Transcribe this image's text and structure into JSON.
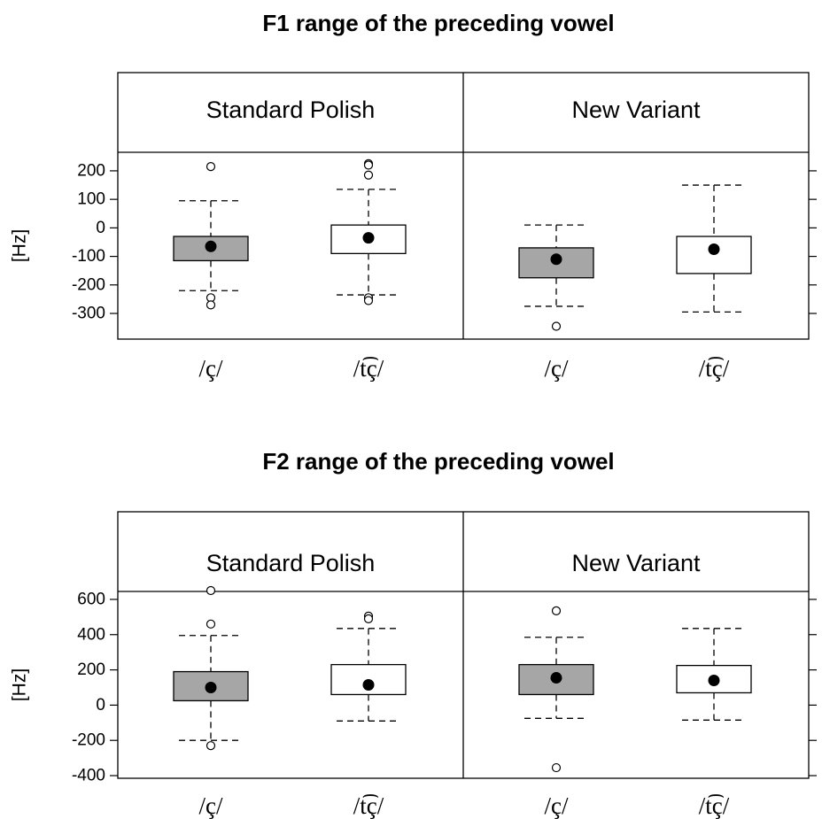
{
  "chart_data": [
    {
      "type": "box",
      "title": "F1 range of the preceding vowel",
      "ylabel": "[Hz]",
      "ylim": [
        -390,
        265
      ],
      "yticks": [
        -300,
        -200,
        -100,
        0,
        100,
        200
      ],
      "ytick_labels": [
        "-300",
        "-200",
        "-100",
        "0",
        "100",
        "200"
      ],
      "panels": [
        {
          "strip_label": "Standard Polish",
          "groups": [
            {
              "category": "/ç/",
              "fill": "#a6a6a6",
              "q1": -115,
              "median": -65,
              "q3": -30,
              "whisker_low": -220,
              "whisker_high": 95,
              "outliers": [
                215,
                -245,
                -270
              ]
            },
            {
              "category": "/t͡ç/",
              "fill": "#ffffff",
              "q1": -90,
              "median": -35,
              "q3": 10,
              "whisker_low": -235,
              "whisker_high": 135,
              "outliers": [
                225,
                220,
                185,
                -245,
                -255
              ]
            }
          ]
        },
        {
          "strip_label": "New Variant",
          "groups": [
            {
              "category": "/ç/",
              "fill": "#a6a6a6",
              "q1": -175,
              "median": -110,
              "q3": -70,
              "whisker_low": -275,
              "whisker_high": 10,
              "outliers": [
                -345
              ]
            },
            {
              "category": "/t͡ç/",
              "fill": "#ffffff",
              "q1": -160,
              "median": -75,
              "q3": -30,
              "whisker_low": -295,
              "whisker_high": 150,
              "outliers": []
            }
          ]
        }
      ]
    },
    {
      "type": "box",
      "title": "F2 range of the preceding vowel",
      "ylabel": "[Hz]",
      "ylim": [
        -415,
        645
      ],
      "yticks": [
        -400,
        -200,
        0,
        200,
        400,
        600
      ],
      "ytick_labels": [
        "-400",
        "-200",
        "0",
        "200",
        "400",
        "600"
      ],
      "panels": [
        {
          "strip_label": "Standard Polish",
          "groups": [
            {
              "category": "/ç/",
              "fill": "#a6a6a6",
              "q1": 25,
              "median": 100,
              "q3": 190,
              "whisker_low": -200,
              "whisker_high": 395,
              "outliers": [
                650,
                460,
                -230
              ]
            },
            {
              "category": "/t͡ç/",
              "fill": "#ffffff",
              "q1": 60,
              "median": 115,
              "q3": 230,
              "whisker_low": -90,
              "whisker_high": 435,
              "outliers": [
                505,
                490
              ]
            }
          ]
        },
        {
          "strip_label": "New Variant",
          "groups": [
            {
              "category": "/ç/",
              "fill": "#a6a6a6",
              "q1": 60,
              "median": 155,
              "q3": 230,
              "whisker_low": -75,
              "whisker_high": 385,
              "outliers": [
                535,
                -355
              ]
            },
            {
              "category": "/t͡ç/",
              "fill": "#ffffff",
              "q1": 70,
              "median": 140,
              "q3": 225,
              "whisker_low": -85,
              "whisker_high": 435,
              "outliers": []
            }
          ]
        }
      ]
    }
  ]
}
